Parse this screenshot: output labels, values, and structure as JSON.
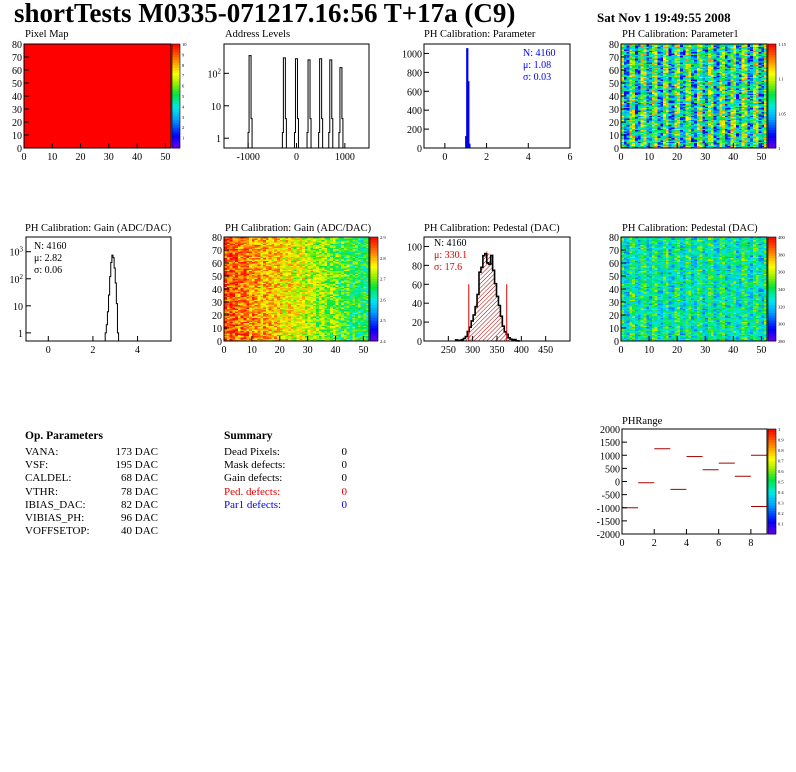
{
  "header": {
    "title": "shortTests M0335-071217.16:56 T+17a (C9)",
    "datetime": "Sat Nov  1 19:49:55 2008"
  },
  "colors": {
    "blue": "#0000ee",
    "red": "#e00000",
    "dark_red": "#aa0000"
  },
  "panels": {
    "pixel_map": "Pixel Map",
    "address_levels": "Address Levels",
    "ph_param": "PH Calibration: Parameter",
    "ph_param1": "PH Calibration: Parameter1",
    "gain_hist": "PH Calibration: Gain (ADC/DAC)",
    "gain_map": "PH Calibration: Gain (ADC/DAC)",
    "pedestal_hist": "PH Calibration: Pedestal (DAC)",
    "pedestal_map": "PH Calibration: Pedestal (DAC)",
    "phrange": "PHRange"
  },
  "stats": {
    "ph_param": {
      "n": "N: 4160",
      "mu": "μ: 1.08",
      "sigma": "σ: 0.03"
    },
    "gain": {
      "n": "N: 4160",
      "mu": "μ: 2.82",
      "sigma": "σ: 0.06"
    },
    "pedestal": {
      "n": "N: 4160",
      "mu": "μ: 330.1",
      "sigma": "σ: 17.6"
    }
  },
  "op_params": {
    "title": "Op. Parameters",
    "rows": [
      {
        "name": "VANA:",
        "value": "173 DAC"
      },
      {
        "name": "VSF:",
        "value": "195 DAC"
      },
      {
        "name": "CALDEL:",
        "value": "68 DAC"
      },
      {
        "name": "VTHR:",
        "value": "78 DAC"
      },
      {
        "name": "IBIAS_DAC:",
        "value": "82 DAC"
      },
      {
        "name": "VIBIAS_PH:",
        "value": "96 DAC"
      },
      {
        "name": "VOFFSETOP:",
        "value": "40 DAC"
      }
    ]
  },
  "summary": {
    "title": "Summary",
    "rows": [
      {
        "name": "Dead Pixels:",
        "value": "0",
        "color": "#000000"
      },
      {
        "name": "Mask defects:",
        "value": "0",
        "color": "#000000"
      },
      {
        "name": "Gain defects:",
        "value": "0",
        "color": "#000000"
      },
      {
        "name": "Ped. defects:",
        "value": "0",
        "color": "#e00000"
      },
      {
        "name": "Par1 defects:",
        "value": "0",
        "color": "#0000ee"
      }
    ]
  },
  "chart_data": [
    {
      "id": "pixel_map",
      "type": "heatmap",
      "title": "Pixel Map",
      "xlim": [
        0,
        52
      ],
      "ylim": [
        0,
        80
      ],
      "xticks": [
        "0",
        "10",
        "20",
        "30",
        "40",
        "50"
      ],
      "yticks": [
        "0",
        "10",
        "20",
        "30",
        "40",
        "50",
        "60",
        "70",
        "80"
      ],
      "fill_value": 10,
      "zlim": [
        0,
        10
      ],
      "palette_ticks": [
        "1",
        "2",
        "3",
        "4",
        "5",
        "6",
        "7",
        "8",
        "9",
        "10"
      ]
    },
    {
      "id": "address_levels",
      "type": "bar",
      "title": "Address Levels",
      "xlim": [
        -1500,
        1500
      ],
      "ylog": true,
      "xticks": [
        "-1000",
        "0",
        "1000"
      ],
      "yticks": [
        "1",
        "10",
        "10^2"
      ],
      "peaks": [
        {
          "x": -940,
          "count": 350
        },
        {
          "x": -230,
          "count": 300
        },
        {
          "x": 20,
          "count": 280
        },
        {
          "x": 280,
          "count": 260
        },
        {
          "x": 520,
          "count": 280
        },
        {
          "x": 730,
          "count": 260
        },
        {
          "x": 940,
          "count": 150
        }
      ]
    },
    {
      "id": "ph_param",
      "type": "bar",
      "title": "PH Calibration: Parameter",
      "xlim": [
        -1,
        6
      ],
      "ylim": [
        0,
        1100
      ],
      "xticks": [
        "0",
        "2",
        "4",
        "6"
      ],
      "yticks": [
        "0",
        "200",
        "400",
        "600",
        "800",
        "1000"
      ],
      "bins": [
        {
          "x": 1.0,
          "count": 120
        },
        {
          "x": 1.05,
          "count": 1050
        },
        {
          "x": 1.1,
          "count": 700
        },
        {
          "x": 1.15,
          "count": 40
        }
      ]
    },
    {
      "id": "ph_param1",
      "type": "heatmap",
      "title": "PH Calibration: Parameter1",
      "xlim": [
        0,
        52
      ],
      "ylim": [
        0,
        80
      ],
      "xticks": [
        "0",
        "10",
        "20",
        "30",
        "40",
        "50"
      ],
      "yticks": [
        "0",
        "10",
        "20",
        "30",
        "40",
        "50",
        "60",
        "70",
        "80"
      ],
      "zlim": [
        1.0,
        1.15
      ],
      "palette_ticks": [
        "1",
        "1.05",
        "1.1",
        "1.15"
      ]
    },
    {
      "id": "gain_hist",
      "type": "bar",
      "title": "PH Calibration: Gain (ADC/DAC)",
      "xlim": [
        -1,
        5.5
      ],
      "ylog": true,
      "xticks": [
        "0",
        "2",
        "4"
      ],
      "yticks": [
        "1",
        "10",
        "10^2",
        "10^3"
      ],
      "bins": [
        {
          "x": 2.55,
          "count": 1
        },
        {
          "x": 2.6,
          "count": 2
        },
        {
          "x": 2.65,
          "count": 6
        },
        {
          "x": 2.7,
          "count": 25
        },
        {
          "x": 2.75,
          "count": 120
        },
        {
          "x": 2.8,
          "count": 400
        },
        {
          "x": 2.85,
          "count": 750
        },
        {
          "x": 2.9,
          "count": 600
        },
        {
          "x": 2.95,
          "count": 250
        },
        {
          "x": 3.0,
          "count": 70
        },
        {
          "x": 3.05,
          "count": 12
        },
        {
          "x": 3.1,
          "count": 1
        }
      ]
    },
    {
      "id": "gain_map",
      "type": "heatmap",
      "title": "PH Calibration: Gain (ADC/DAC)",
      "xlim": [
        0,
        52
      ],
      "ylim": [
        0,
        80
      ],
      "xticks": [
        "0",
        "10",
        "20",
        "30",
        "40",
        "50"
      ],
      "yticks": [
        "0",
        "10",
        "20",
        "30",
        "40",
        "50",
        "60",
        "70",
        "80"
      ],
      "zlim": [
        2.4,
        2.9
      ],
      "palette_ticks": [
        "2.4",
        "2.5",
        "2.6",
        "2.7",
        "2.8",
        "2.9"
      ]
    },
    {
      "id": "pedestal_hist",
      "type": "bar",
      "title": "PH Calibration: Pedestal (DAC)",
      "xlim": [
        200,
        500
      ],
      "ylim": [
        0,
        110
      ],
      "xticks": [
        "250",
        "300",
        "350",
        "400",
        "450"
      ],
      "yticks": [
        "0",
        "20",
        "40",
        "60",
        "80",
        "100"
      ],
      "mean": 330.1,
      "sigma": 17.6,
      "peak": 95,
      "cut_lines": [
        292,
        370
      ]
    },
    {
      "id": "pedestal_map",
      "type": "heatmap",
      "title": "PH Calibration: Pedestal (DAC)",
      "xlim": [
        0,
        52
      ],
      "ylim": [
        0,
        80
      ],
      "xticks": [
        "0",
        "10",
        "20",
        "30",
        "40",
        "50"
      ],
      "yticks": [
        "0",
        "10",
        "20",
        "30",
        "40",
        "50",
        "60",
        "70",
        "80"
      ],
      "zlim": [
        280,
        400
      ],
      "palette_ticks": [
        "280",
        "300",
        "320",
        "340",
        "360",
        "380",
        "400"
      ]
    },
    {
      "id": "phrange",
      "type": "scatter",
      "title": "PHRange",
      "xlim": [
        0,
        9
      ],
      "ylim": [
        -2000,
        2000
      ],
      "xticks": [
        "0",
        "2",
        "4",
        "6",
        "8"
      ],
      "yticks": [
        "-2000",
        "-1500",
        "-1000",
        "-500",
        "0",
        "500",
        "1000",
        "1500",
        "2000"
      ],
      "points": [
        {
          "x": 0.5,
          "y": -1000
        },
        {
          "x": 1.5,
          "y": -50
        },
        {
          "x": 2.5,
          "y": 1250
        },
        {
          "x": 3.5,
          "y": -300
        },
        {
          "x": 4.5,
          "y": 950
        },
        {
          "x": 5.5,
          "y": 450
        },
        {
          "x": 6.5,
          "y": 700
        },
        {
          "x": 7.5,
          "y": 200
        },
        {
          "x": 8.5,
          "y": 1000
        },
        {
          "x": 8.5,
          "y": -950
        }
      ],
      "palette_ticks": [
        "0.1",
        "0.2",
        "0.3",
        "0.4",
        "0.5",
        "0.6",
        "0.7",
        "0.8",
        "0.9",
        "1"
      ]
    }
  ]
}
